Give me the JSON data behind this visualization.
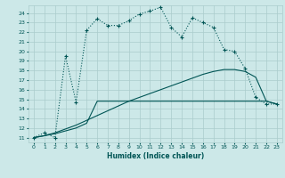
{
  "xlabel": "Humidex (Indice chaleur)",
  "bg_color": "#cce8e8",
  "grid_color": "#aacccc",
  "line_color": "#005555",
  "x_ticks": [
    0,
    1,
    2,
    3,
    4,
    5,
    6,
    7,
    8,
    9,
    10,
    11,
    12,
    13,
    14,
    15,
    16,
    17,
    18,
    19,
    20,
    21,
    22,
    23
  ],
  "y_ticks": [
    11,
    12,
    13,
    14,
    15,
    16,
    17,
    18,
    19,
    20,
    21,
    22,
    23,
    24
  ],
  "ylim": [
    10.5,
    24.8
  ],
  "xlim": [
    -0.5,
    23.5
  ],
  "line1_x": [
    0,
    1,
    2,
    3,
    4,
    5,
    6,
    7,
    8,
    9,
    10,
    11,
    12,
    13,
    14,
    15,
    16,
    17,
    18,
    19,
    20,
    21,
    22,
    23
  ],
  "line1_y": [
    11,
    11.5,
    11,
    19.5,
    14.7,
    22.2,
    23.4,
    22.7,
    22.7,
    23.2,
    23.9,
    24.2,
    24.6,
    22.5,
    21.5,
    23.5,
    23.0,
    22.5,
    20.2,
    20.0,
    18.2,
    15.2,
    14.5,
    14.5
  ],
  "line2_x": [
    0,
    1,
    2,
    3,
    4,
    5,
    6,
    7,
    8,
    9,
    10,
    11,
    12,
    13,
    14,
    15,
    16,
    17,
    18,
    19,
    20,
    21,
    22,
    23
  ],
  "line2_y": [
    11,
    11.2,
    11.4,
    11.7,
    12.0,
    12.5,
    14.8,
    14.8,
    14.8,
    14.8,
    14.8,
    14.8,
    14.8,
    14.8,
    14.8,
    14.8,
    14.8,
    14.8,
    14.8,
    14.8,
    14.8,
    14.8,
    14.8,
    14.5
  ],
  "line3_x": [
    0,
    1,
    2,
    3,
    4,
    5,
    6,
    7,
    8,
    9,
    10,
    11,
    12,
    13,
    14,
    15,
    16,
    17,
    18,
    19,
    20,
    21,
    22,
    23
  ],
  "line3_y": [
    11,
    11.2,
    11.5,
    11.9,
    12.3,
    12.8,
    13.3,
    13.8,
    14.3,
    14.8,
    15.2,
    15.6,
    16.0,
    16.4,
    16.8,
    17.2,
    17.6,
    17.9,
    18.1,
    18.1,
    17.9,
    17.3,
    14.8,
    14.5
  ]
}
